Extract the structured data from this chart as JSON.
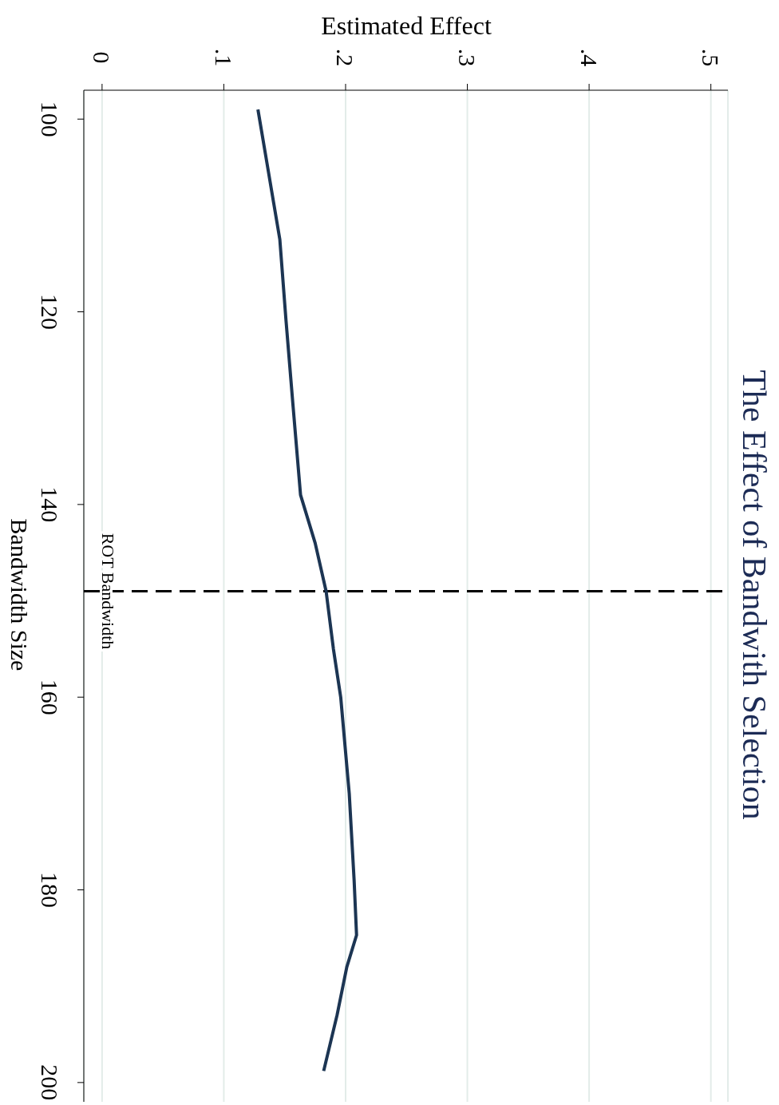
{
  "chart_data": {
    "type": "line",
    "orientation": "horizontal",
    "title": "The Effect of Bandwith Selection",
    "xlabel": "Estimated Effect",
    "ylabel": "Bandwidth Size",
    "x": [
      99,
      105,
      112.5,
      120.8,
      130,
      139,
      144,
      149,
      155,
      160,
      170,
      179,
      184.7,
      188,
      193,
      198.8
    ],
    "series": [
      {
        "color": "#1c3553",
        "values": [
          0.128,
          0.136,
          0.146,
          0.151,
          0.157,
          0.163,
          0.175,
          0.184,
          0.19,
          0.196,
          0.203,
          0.207,
          0.209,
          0.201,
          0.193,
          0.182
        ]
      }
    ],
    "ylim": [
      202,
      97
    ],
    "yticks": [
      100,
      120,
      140,
      160,
      180,
      200
    ],
    "xlim": [
      -0.015,
      0.514
    ],
    "xticks": [
      {
        "value": 0,
        "label": "0"
      },
      {
        "value": 0.1,
        "label": ".1"
      },
      {
        "value": 0.2,
        "label": ".2"
      },
      {
        "value": 0.3,
        "label": ".3"
      },
      {
        "value": 0.4,
        "label": ".4"
      },
      {
        "value": 0.5,
        "label": ".5"
      }
    ],
    "ref_lines": [
      {
        "axis": "y",
        "value": 149,
        "label": "ROT Bandwidth",
        "color": "#000000",
        "line_style": "dashed"
      }
    ],
    "grid": "x",
    "line_style": "solid"
  }
}
